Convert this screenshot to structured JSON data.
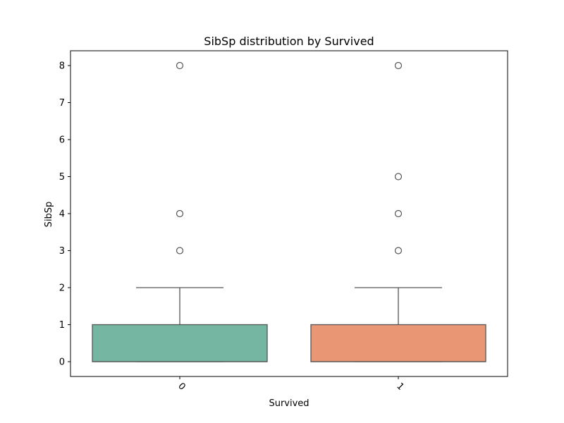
{
  "chart_data": {
    "type": "box",
    "title": "SibSp distribution by Survived",
    "xlabel": "Survived",
    "ylabel": "SibSp",
    "ylim": [
      -0.4,
      8.4
    ],
    "yticks": [
      0,
      1,
      2,
      3,
      4,
      5,
      6,
      7,
      8
    ],
    "categories": [
      "0",
      "1"
    ],
    "xtick_rotation_deg": 45,
    "grid": false,
    "legend": "none",
    "boxes": [
      {
        "category": "0",
        "color": "#74b6a2",
        "min": 0,
        "q1": 0,
        "median": 0,
        "q3": 1,
        "max": 2,
        "outliers": [
          3,
          4,
          8
        ]
      },
      {
        "category": "1",
        "color": "#e99674",
        "min": 0,
        "q1": 0,
        "median": 0,
        "q3": 1,
        "max": 2,
        "outliers": [
          3,
          4,
          5,
          8
        ]
      }
    ]
  }
}
